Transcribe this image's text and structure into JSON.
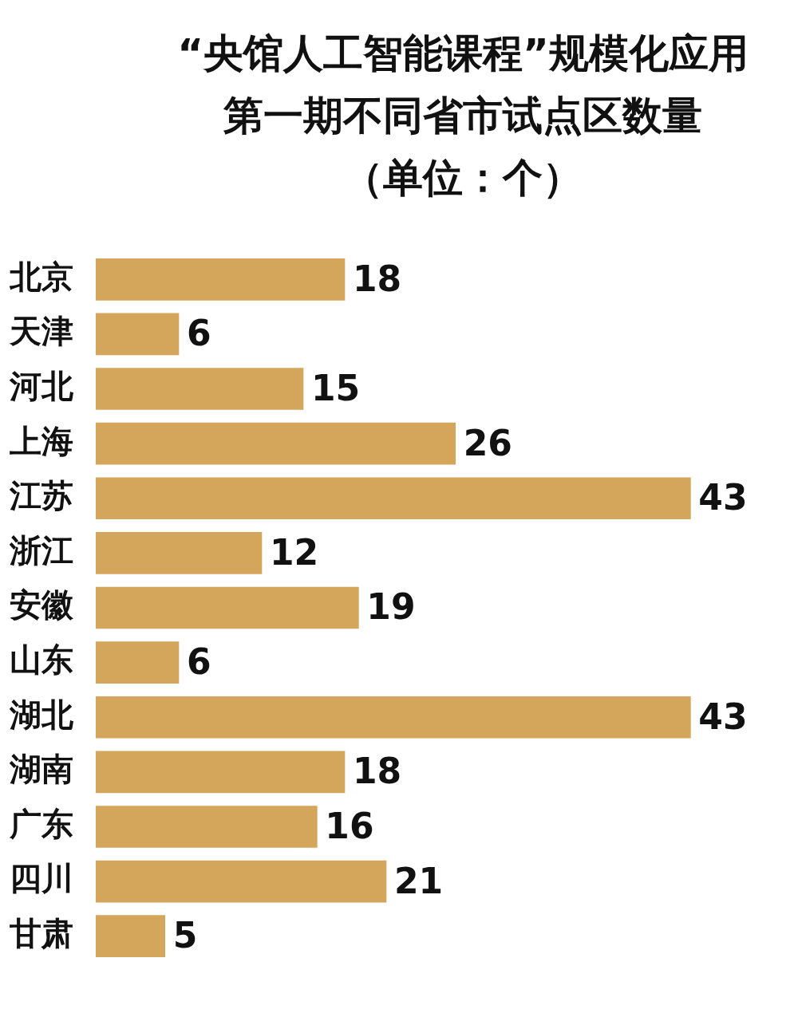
{
  "chart_data": {
    "type": "bar",
    "orientation": "horizontal",
    "title": "“央馆人工智能课程”规模化应用第一期不同省市试点区数量",
    "subtitle": "（单位：个）",
    "categories": [
      "北京",
      "天津",
      "河北",
      "上海",
      "江苏",
      "浙江",
      "安徽",
      "山东",
      "湖北",
      "湖南",
      "广东",
      "四川",
      "甘肃"
    ],
    "values": [
      18,
      6,
      15,
      26,
      43,
      12,
      19,
      6,
      43,
      18,
      16,
      21,
      5
    ],
    "color": "#d4a65b",
    "data_labels": true,
    "tick_labels": "y"
  }
}
